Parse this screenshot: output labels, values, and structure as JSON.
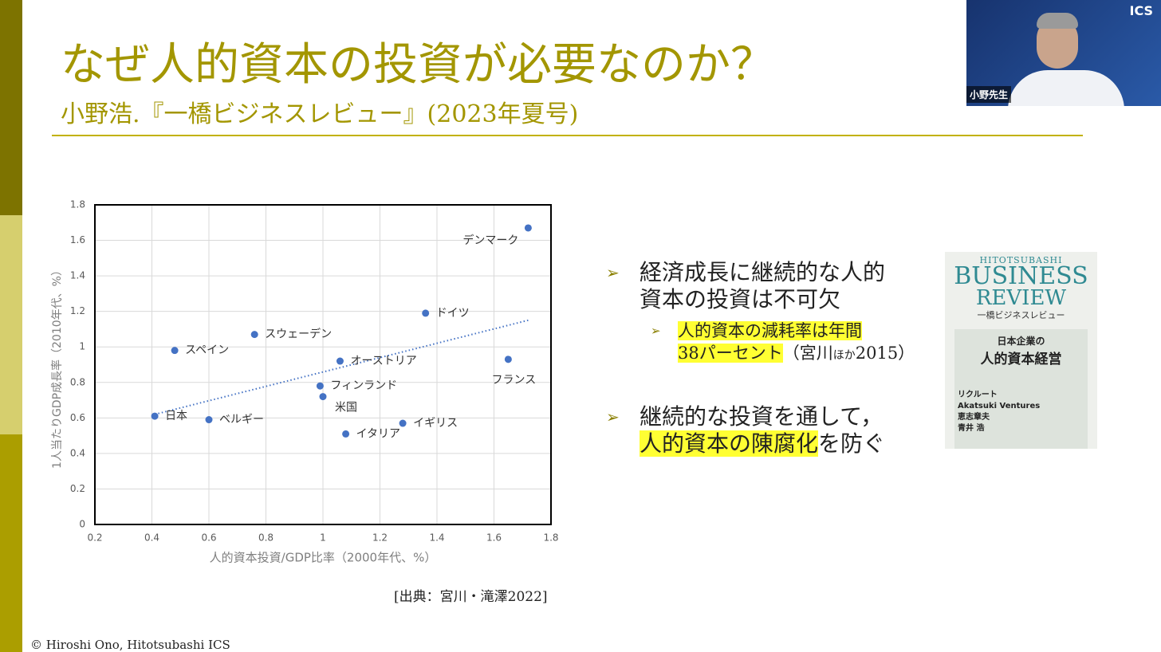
{
  "slide": {
    "title": "なぜ人的資本の投資が必要なのか？",
    "subtitle": "小野浩.『一橋ビジネスレビュー』(2023年夏号)"
  },
  "chart_data": {
    "type": "scatter",
    "color": "#4472c4",
    "grid": true,
    "xlabel": "人的資本投資/GDP比率（2000年代、%）",
    "ylabel": "1人当たりGDP成長率（2010年代、%）",
    "categories": [
      "デンマーク",
      "ドイツ",
      "スウェーデン",
      "スペイン",
      "オーストリア",
      "フランス",
      "フィンランド",
      "米国",
      "日本",
      "ベルギー",
      "イギリス",
      "イタリア"
    ],
    "x": [
      1.72,
      1.36,
      0.76,
      0.48,
      1.06,
      1.65,
      0.99,
      1.0,
      0.41,
      0.6,
      1.28,
      1.08
    ],
    "values": [
      1.67,
      1.19,
      1.07,
      0.98,
      0.92,
      0.93,
      0.78,
      0.72,
      0.61,
      0.59,
      0.57,
      0.51
    ],
    "trendline": {
      "x": [
        0.41,
        1.72
      ],
      "values": [
        0.62,
        1.15
      ]
    },
    "xlim": [
      0.2,
      1.8
    ],
    "xticks": [
      0.2,
      0.4,
      0.6,
      0.8,
      1,
      1.2,
      1.4,
      1.6,
      1.8
    ],
    "ylim": [
      0,
      1.8
    ],
    "yticks": [
      0,
      0.2,
      0.4,
      0.6,
      0.8,
      1,
      1.2,
      1.4,
      1.6,
      1.8
    ]
  },
  "source": "[出典：宮川・滝澤2022]",
  "bullets": [
    {
      "lines": [
        "経済成長に継続的な人的",
        "資本の投資は不可欠"
      ],
      "sub": {
        "highlight": [
          "人的資本の減耗率は年間",
          "38パーセント"
        ],
        "rest": [
          "（宮川",
          "ほか",
          "2015）"
        ]
      }
    },
    {
      "lines": [
        "継続的な投資を通して，"
      ],
      "highlight": "人的資本の陳腐化",
      "rest": "を防ぐ"
    }
  ],
  "book": {
    "brand": "HITOTSUBASHI",
    "name1": "BUSINESS",
    "name2": "REVIEW",
    "jp": "一橋ビジネスレビュー",
    "feature1": "日本企業の",
    "feature2": "人的資本経営",
    "item1": "リクルート",
    "item2": "Akatsuki Ventures",
    "item3": "恵志章夫",
    "item4": "青井 浩"
  },
  "video": {
    "logo": "ICS",
    "name": "小野先生"
  },
  "copyright": "© Hiroshi Ono, Hitotsubashi ICS"
}
